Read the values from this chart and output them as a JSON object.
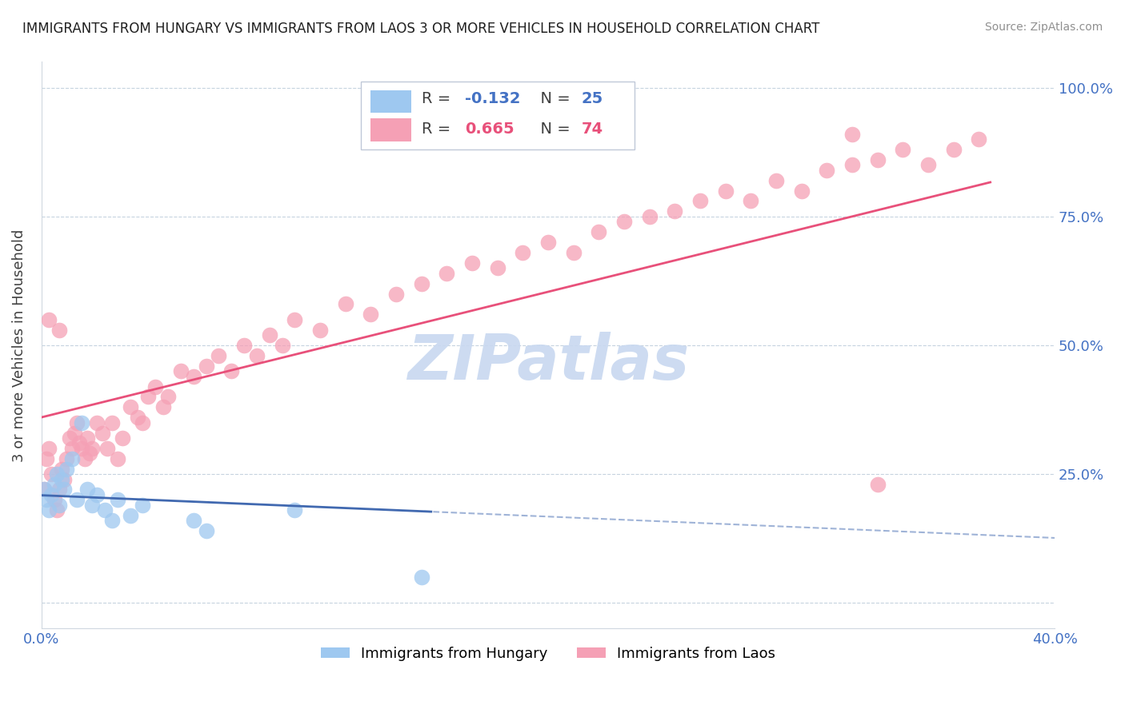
{
  "title": "IMMIGRANTS FROM HUNGARY VS IMMIGRANTS FROM LAOS 3 OR MORE VEHICLES IN HOUSEHOLD CORRELATION CHART",
  "source": "Source: ZipAtlas.com",
  "ylabel": "3 or more Vehicles in Household",
  "xlim": [
    0.0,
    0.4
  ],
  "ylim": [
    -0.05,
    1.05
  ],
  "hungary_color": "#9EC8F0",
  "laos_color": "#F5A0B5",
  "hungary_line_color": "#4169B0",
  "laos_line_color": "#E8507A",
  "hungary_R": -0.132,
  "hungary_N": 25,
  "laos_R": 0.665,
  "laos_N": 74,
  "watermark": "ZIPatlas",
  "watermark_color": "#C8D8F0",
  "legend_label_hungary": "Immigrants from Hungary",
  "legend_label_laos": "Immigrants from Laos",
  "hungary_x": [
    0.001,
    0.002,
    0.003,
    0.004,
    0.005,
    0.006,
    0.007,
    0.008,
    0.009,
    0.01,
    0.012,
    0.014,
    0.016,
    0.018,
    0.02,
    0.022,
    0.025,
    0.028,
    0.03,
    0.035,
    0.04,
    0.06,
    0.065,
    0.1,
    0.15
  ],
  "hungary_y": [
    0.22,
    0.2,
    0.18,
    0.21,
    0.23,
    0.25,
    0.19,
    0.24,
    0.22,
    0.26,
    0.28,
    0.2,
    0.35,
    0.22,
    0.19,
    0.21,
    0.18,
    0.16,
    0.2,
    0.17,
    0.19,
    0.16,
    0.14,
    0.18,
    0.05
  ],
  "laos_x": [
    0.001,
    0.002,
    0.003,
    0.004,
    0.005,
    0.006,
    0.007,
    0.008,
    0.009,
    0.01,
    0.011,
    0.012,
    0.013,
    0.014,
    0.015,
    0.016,
    0.017,
    0.018,
    0.019,
    0.02,
    0.022,
    0.024,
    0.026,
    0.028,
    0.03,
    0.032,
    0.035,
    0.038,
    0.04,
    0.042,
    0.045,
    0.048,
    0.05,
    0.055,
    0.06,
    0.065,
    0.07,
    0.075,
    0.08,
    0.085,
    0.09,
    0.095,
    0.1,
    0.11,
    0.12,
    0.13,
    0.14,
    0.15,
    0.16,
    0.17,
    0.18,
    0.19,
    0.2,
    0.21,
    0.22,
    0.23,
    0.24,
    0.25,
    0.26,
    0.27,
    0.28,
    0.29,
    0.3,
    0.31,
    0.32,
    0.33,
    0.34,
    0.35,
    0.36,
    0.37,
    0.003,
    0.007,
    0.33,
    0.32
  ],
  "laos_y": [
    0.22,
    0.28,
    0.3,
    0.25,
    0.2,
    0.18,
    0.22,
    0.26,
    0.24,
    0.28,
    0.32,
    0.3,
    0.33,
    0.35,
    0.31,
    0.3,
    0.28,
    0.32,
    0.29,
    0.3,
    0.35,
    0.33,
    0.3,
    0.35,
    0.28,
    0.32,
    0.38,
    0.36,
    0.35,
    0.4,
    0.42,
    0.38,
    0.4,
    0.45,
    0.44,
    0.46,
    0.48,
    0.45,
    0.5,
    0.48,
    0.52,
    0.5,
    0.55,
    0.53,
    0.58,
    0.56,
    0.6,
    0.62,
    0.64,
    0.66,
    0.65,
    0.68,
    0.7,
    0.68,
    0.72,
    0.74,
    0.75,
    0.76,
    0.78,
    0.8,
    0.78,
    0.82,
    0.8,
    0.84,
    0.85,
    0.86,
    0.88,
    0.85,
    0.88,
    0.9,
    0.55,
    0.53,
    0.23,
    0.91
  ]
}
